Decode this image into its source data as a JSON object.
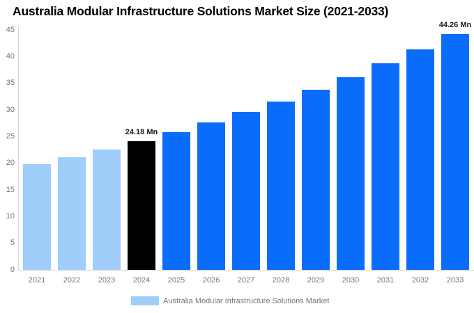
{
  "title": "Australia Modular Infrastructure Solutions Market Size (2021-2033)",
  "colors": {
    "historical_bar": "#A0CDFA",
    "base_year_bar": "#000000",
    "forecast_bar": "#0A6CFB",
    "axis_line": "#D6D6D6",
    "tick_text": "#757575",
    "data_label_text": "#1A1A1A",
    "background": "#FFFFFF"
  },
  "chart_data": {
    "type": "bar",
    "title": "Australia Modular Infrastructure Solutions Market Size (2021-2033)",
    "categories": [
      "2021",
      "2022",
      "2023",
      "2024",
      "2025",
      "2026",
      "2027",
      "2028",
      "2029",
      "2030",
      "2031",
      "2032",
      "2033"
    ],
    "values": [
      19.77,
      21.14,
      22.61,
      24.18,
      25.86,
      27.66,
      29.58,
      31.63,
      33.83,
      36.18,
      38.69,
      41.38,
      44.26
    ],
    "unit": "Mn",
    "bar_colors": [
      "#A0CDFA",
      "#A0CDFA",
      "#A0CDFA",
      "#000000",
      "#0A6CFB",
      "#0A6CFB",
      "#0A6CFB",
      "#0A6CFB",
      "#0A6CFB",
      "#0A6CFB",
      "#0A6CFB",
      "#0A6CFB",
      "#0A6CFB"
    ],
    "data_labels": [
      {
        "category": "2024",
        "text": "24.18 Mn"
      },
      {
        "category": "2033",
        "text": "44.26 Mn"
      }
    ],
    "xlabel": "",
    "ylabel": "",
    "ylim": [
      0,
      45
    ],
    "yticks": [
      0,
      5,
      10,
      15,
      20,
      25,
      30,
      35,
      40,
      45
    ],
    "grid": false,
    "legend": {
      "position": "bottom",
      "items": [
        {
          "label": "Australia Modular Infrastructure Solutions Market",
          "color": "#A0CDFA"
        }
      ]
    }
  }
}
